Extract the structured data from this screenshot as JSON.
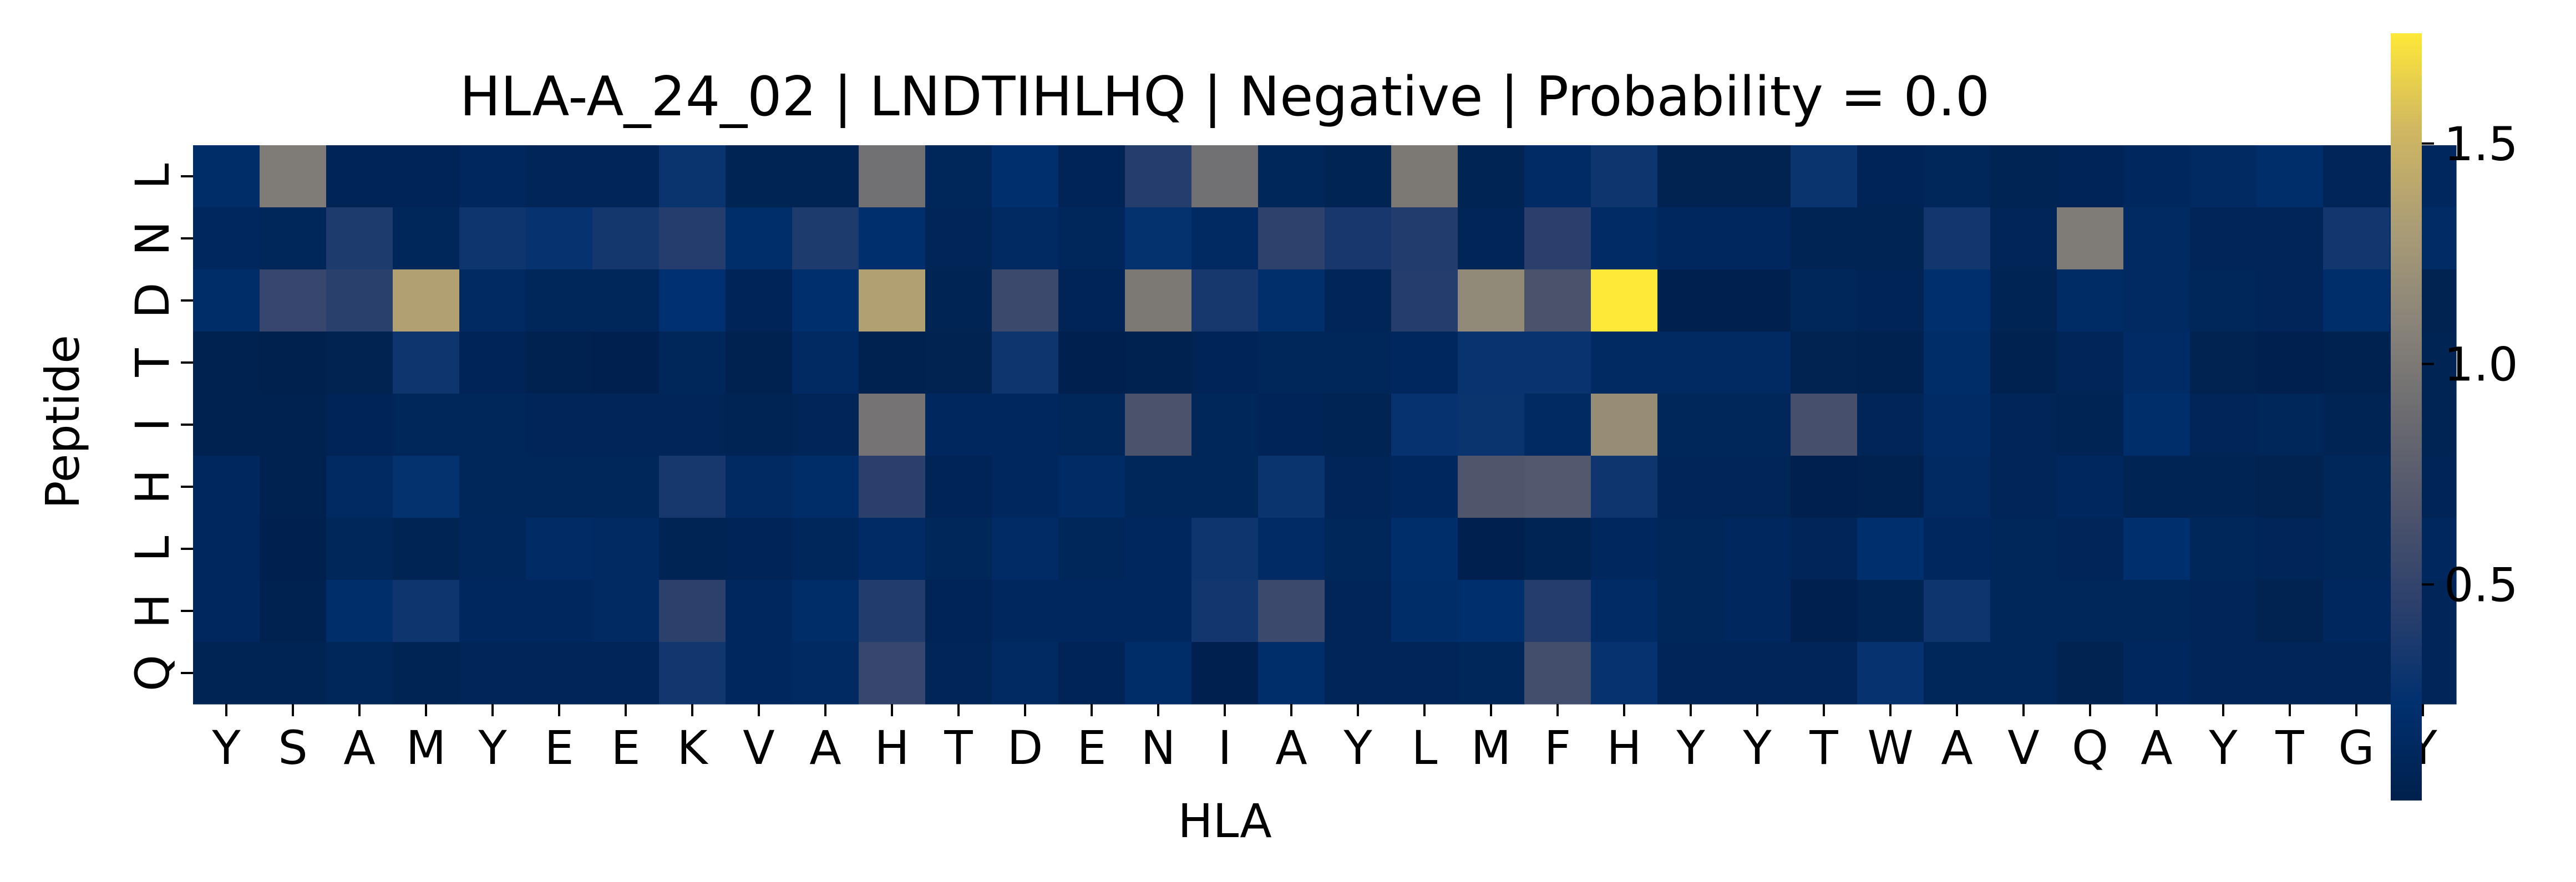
{
  "chart_data": {
    "type": "heatmap",
    "title": "HLA-A_24_02 | LNDTIHLHQ | Negative | Probability = 0.0",
    "xlabel": "HLA",
    "ylabel": "Peptide",
    "x_categories": [
      "Y",
      "S",
      "A",
      "M",
      "Y",
      "E",
      "E",
      "K",
      "V",
      "A",
      "H",
      "T",
      "D",
      "E",
      "N",
      "I",
      "A",
      "Y",
      "L",
      "M",
      "F",
      "H",
      "Y",
      "Y",
      "T",
      "W",
      "A",
      "V",
      "Q",
      "A",
      "Y",
      "T",
      "G",
      "Y"
    ],
    "y_categories": [
      "L",
      "N",
      "D",
      "T",
      "I",
      "H",
      "L",
      "H",
      "Q"
    ],
    "values": [
      [
        0.18,
        1.02,
        0.07,
        0.07,
        0.12,
        0.08,
        0.08,
        0.28,
        0.06,
        0.06,
        0.92,
        0.1,
        0.22,
        0.07,
        0.42,
        0.92,
        0.1,
        0.06,
        1.0,
        0.06,
        0.16,
        0.3,
        0.05,
        0.05,
        0.28,
        0.07,
        0.1,
        0.06,
        0.07,
        0.12,
        0.14,
        0.2,
        0.08,
        0.12
      ],
      [
        0.12,
        0.1,
        0.38,
        0.1,
        0.3,
        0.26,
        0.33,
        0.42,
        0.2,
        0.38,
        0.22,
        0.08,
        0.14,
        0.11,
        0.25,
        0.14,
        0.47,
        0.35,
        0.4,
        0.08,
        0.45,
        0.16,
        0.12,
        0.12,
        0.06,
        0.06,
        0.32,
        0.08,
        1.02,
        0.14,
        0.08,
        0.08,
        0.32,
        0.16
      ],
      [
        0.18,
        0.52,
        0.44,
        1.35,
        0.14,
        0.1,
        0.1,
        0.23,
        0.07,
        0.22,
        1.35,
        0.06,
        0.55,
        0.07,
        1.0,
        0.34,
        0.21,
        0.08,
        0.42,
        1.15,
        0.65,
        1.8,
        0.03,
        0.03,
        0.1,
        0.07,
        0.22,
        0.06,
        0.17,
        0.14,
        0.1,
        0.09,
        0.2,
        0.05
      ],
      [
        0.04,
        0.02,
        0.05,
        0.3,
        0.07,
        0.04,
        0.03,
        0.1,
        0.04,
        0.14,
        0.04,
        0.05,
        0.3,
        0.03,
        0.04,
        0.07,
        0.1,
        0.1,
        0.12,
        0.27,
        0.27,
        0.14,
        0.14,
        0.14,
        0.05,
        0.04,
        0.18,
        0.04,
        0.08,
        0.16,
        0.05,
        0.03,
        0.04,
        0.06
      ],
      [
        0.04,
        0.04,
        0.07,
        0.1,
        0.1,
        0.08,
        0.08,
        0.08,
        0.06,
        0.08,
        0.95,
        0.12,
        0.12,
        0.1,
        0.65,
        0.1,
        0.07,
        0.06,
        0.26,
        0.28,
        0.14,
        1.18,
        0.1,
        0.1,
        0.62,
        0.08,
        0.16,
        0.08,
        0.06,
        0.2,
        0.08,
        0.1,
        0.06,
        0.06
      ],
      [
        0.12,
        0.04,
        0.14,
        0.25,
        0.1,
        0.1,
        0.1,
        0.34,
        0.14,
        0.18,
        0.45,
        0.07,
        0.12,
        0.16,
        0.1,
        0.1,
        0.28,
        0.08,
        0.12,
        0.68,
        0.7,
        0.3,
        0.08,
        0.08,
        0.03,
        0.04,
        0.14,
        0.08,
        0.12,
        0.06,
        0.06,
        0.05,
        0.1,
        0.07
      ],
      [
        0.12,
        0.03,
        0.1,
        0.06,
        0.11,
        0.16,
        0.14,
        0.06,
        0.07,
        0.11,
        0.16,
        0.1,
        0.16,
        0.1,
        0.12,
        0.3,
        0.16,
        0.1,
        0.2,
        0.03,
        0.06,
        0.12,
        0.1,
        0.12,
        0.08,
        0.22,
        0.12,
        0.1,
        0.08,
        0.22,
        0.1,
        0.08,
        0.1,
        0.12
      ],
      [
        0.12,
        0.04,
        0.2,
        0.3,
        0.12,
        0.12,
        0.14,
        0.46,
        0.12,
        0.18,
        0.4,
        0.07,
        0.12,
        0.12,
        0.12,
        0.32,
        0.55,
        0.08,
        0.18,
        0.22,
        0.42,
        0.16,
        0.1,
        0.12,
        0.03,
        0.06,
        0.3,
        0.1,
        0.1,
        0.1,
        0.08,
        0.05,
        0.12,
        0.09
      ],
      [
        0.06,
        0.06,
        0.1,
        0.06,
        0.08,
        0.08,
        0.08,
        0.32,
        0.12,
        0.14,
        0.52,
        0.08,
        0.14,
        0.07,
        0.18,
        0.03,
        0.2,
        0.08,
        0.08,
        0.1,
        0.6,
        0.26,
        0.08,
        0.08,
        0.08,
        0.26,
        0.1,
        0.1,
        0.05,
        0.12,
        0.08,
        0.08,
        0.08,
        0.08
      ]
    ],
    "colorbar": {
      "cmap": "cividis",
      "vmin": 0.01,
      "vmax": 1.75,
      "ticks": [
        0.5,
        1.0,
        1.5
      ],
      "tick_labels": [
        "0.5",
        "1.0",
        "1.5"
      ]
    }
  }
}
